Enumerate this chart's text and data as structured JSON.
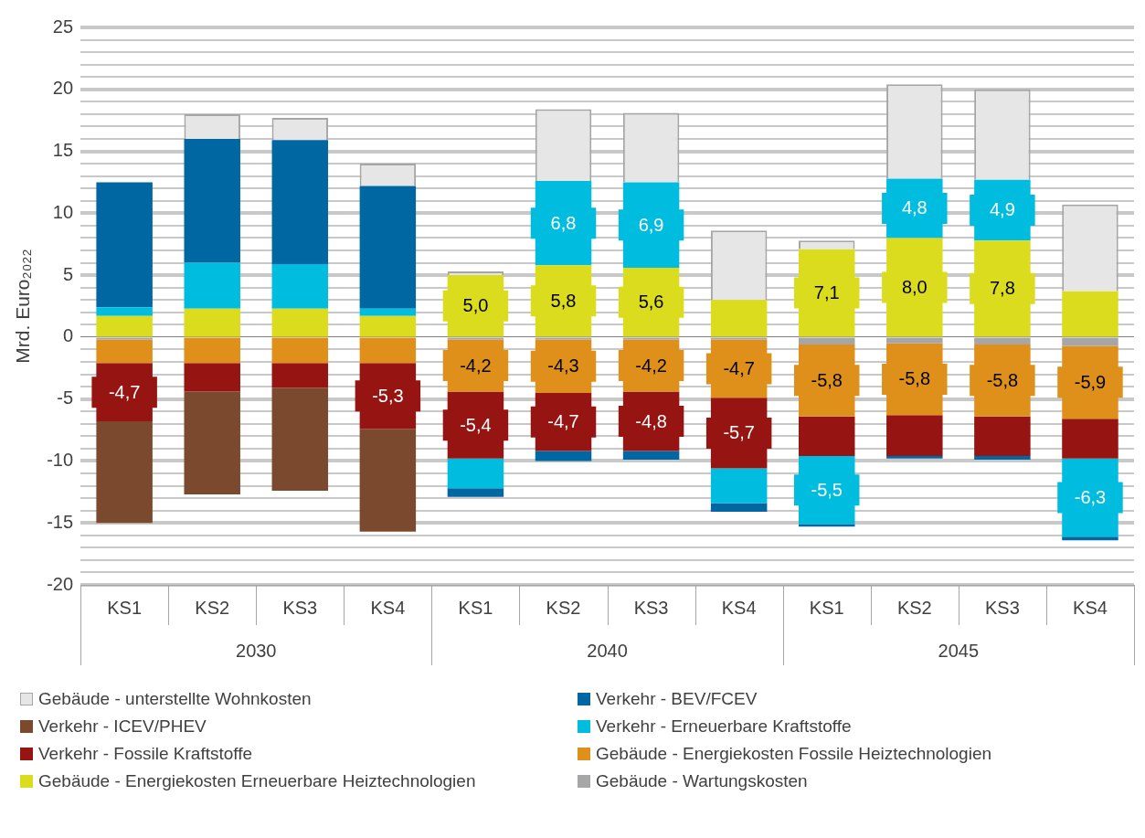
{
  "chart_data": {
    "type": "bar",
    "stacked": true,
    "ylabel": "Mrd. Euro₂₀₂₂",
    "categories": [
      "KS1",
      "KS2",
      "KS3",
      "KS4",
      "KS1",
      "KS2",
      "KS3",
      "KS4",
      "KS1",
      "KS2",
      "KS3",
      "KS4"
    ],
    "annotations": [
      "2030",
      "2040",
      "2045"
    ],
    "ylim": [
      -20,
      25
    ],
    "yticks": [
      -20,
      {
        "value": -19,
        "label": null
      },
      {
        "value": -18,
        "label": null
      },
      {
        "value": -17,
        "label": null
      },
      {
        "value": -16,
        "label": null
      },
      -15,
      {
        "value": -14,
        "label": null
      },
      {
        "value": -13,
        "label": null
      },
      {
        "value": -12,
        "label": null
      },
      {
        "value": -11,
        "label": null
      },
      -10,
      {
        "value": -9,
        "label": null
      },
      {
        "value": -8,
        "label": null
      },
      {
        "value": -7,
        "label": null
      },
      {
        "value": -6,
        "label": null
      },
      -5,
      {
        "value": -4,
        "label": null
      },
      {
        "value": -3,
        "label": null
      },
      {
        "value": -2,
        "label": null
      },
      {
        "value": -1,
        "label": null
      },
      0,
      {
        "value": 1,
        "label": null
      },
      {
        "value": 2,
        "label": null
      },
      {
        "value": 3,
        "label": null
      },
      {
        "value": 4,
        "label": null
      },
      5,
      {
        "value": 6,
        "label": null
      },
      {
        "value": 7,
        "label": null
      },
      {
        "value": 8,
        "label": null
      },
      {
        "value": 9,
        "label": null
      },
      10,
      {
        "value": 11,
        "label": null
      },
      {
        "value": 12,
        "label": null
      },
      {
        "value": 13,
        "label": null
      },
      {
        "value": 14,
        "label": null
      },
      15,
      {
        "value": 16,
        "label": null
      },
      {
        "value": 17,
        "label": null
      },
      {
        "value": 18,
        "label": null
      },
      {
        "value": 19,
        "label": null
      },
      20,
      {
        "value": 21,
        "label": null
      },
      {
        "value": 22,
        "label": null
      },
      {
        "value": 23,
        "label": null
      },
      {
        "value": 24,
        "label": null
      },
      25
    ],
    "grid": "y",
    "legend": "bottom",
    "series": [
      {
        "name": "Gebäude - Wartungskosten",
        "color": "#a6a6a6",
        "values": [
          -0.2,
          null,
          null,
          null,
          -0.2,
          -0.2,
          -0.2,
          -0.2,
          -0.6,
          -0.5,
          -0.6,
          -0.7
        ]
      },
      {
        "name": "Gebäude - Energiekosten Erneuerbare Heiztechnologien",
        "color": "#dcdc1e",
        "values": [
          1.7,
          2.3,
          2.3,
          1.7,
          5.0,
          5.8,
          5.6,
          3.0,
          7.1,
          8.0,
          7.8,
          3.7
        ],
        "value_labels": [
          null,
          null,
          null,
          null,
          "5,0",
          "5,8",
          "5,6",
          null,
          "7,1",
          "8,0",
          "7,8",
          null
        ]
      },
      {
        "name": "Gebäude - Energiekosten Fossile Heiztechnologien",
        "color": "#de901a",
        "values": [
          -1.9,
          -2.1,
          -2.1,
          -2.1,
          -4.2,
          -4.3,
          -4.2,
          -4.7,
          -5.8,
          -5.8,
          -5.8,
          -5.9
        ],
        "value_labels": [
          null,
          null,
          null,
          null,
          "-4,2",
          "-4,3",
          "-4,2",
          "-4,7",
          "-5,8",
          "-5,8",
          "-5,8",
          "-5,9"
        ]
      },
      {
        "name": "Verkehr - Fossile Kraftstoffe",
        "color": "#961411",
        "values": [
          -4.7,
          -2.3,
          -2.0,
          -5.3,
          -5.4,
          -4.7,
          -4.8,
          -5.7,
          -3.2,
          -3.3,
          -3.2,
          -3.2
        ],
        "value_labels": [
          "-4,7",
          null,
          null,
          "-5,3",
          "-5,4",
          "-4,7",
          "-4,8",
          "-5,7",
          null,
          null,
          null,
          null
        ]
      },
      {
        "name": "Verkehr - Erneuerbare Kraftstoffe",
        "color": "#00bde0",
        "values": [
          0.7,
          3.7,
          3.6,
          0.6,
          -2.4,
          6.8,
          6.9,
          -2.8,
          -5.5,
          4.8,
          4.9,
          -6.3
        ],
        "value_labels": [
          null,
          null,
          null,
          null,
          null,
          "6,8",
          "6,9",
          null,
          "-5,5",
          "4,8",
          "4,9",
          "-6,3"
        ]
      },
      {
        "name": "Verkehr - ICEV/PHEV",
        "color": "#7b4a2e",
        "values": [
          -8.2,
          -8.3,
          -8.3,
          -8.3,
          null,
          null,
          null,
          null,
          null,
          null,
          null,
          null
        ]
      },
      {
        "name": "Verkehr - BEV/FCEV",
        "color": "#0067a3",
        "values": [
          10.1,
          10.0,
          10.0,
          9.9,
          -0.7,
          -0.8,
          -0.7,
          -0.7,
          -0.2,
          -0.2,
          -0.3,
          -0.3
        ]
      },
      {
        "name": "Gebäude - unterstellte Wohnkosten",
        "color": "#e6e6e6",
        "values": [
          null,
          2.0,
          1.8,
          1.8,
          0.3,
          5.8,
          5.6,
          5.6,
          0.7,
          7.6,
          7.3,
          7.0
        ]
      }
    ]
  }
}
